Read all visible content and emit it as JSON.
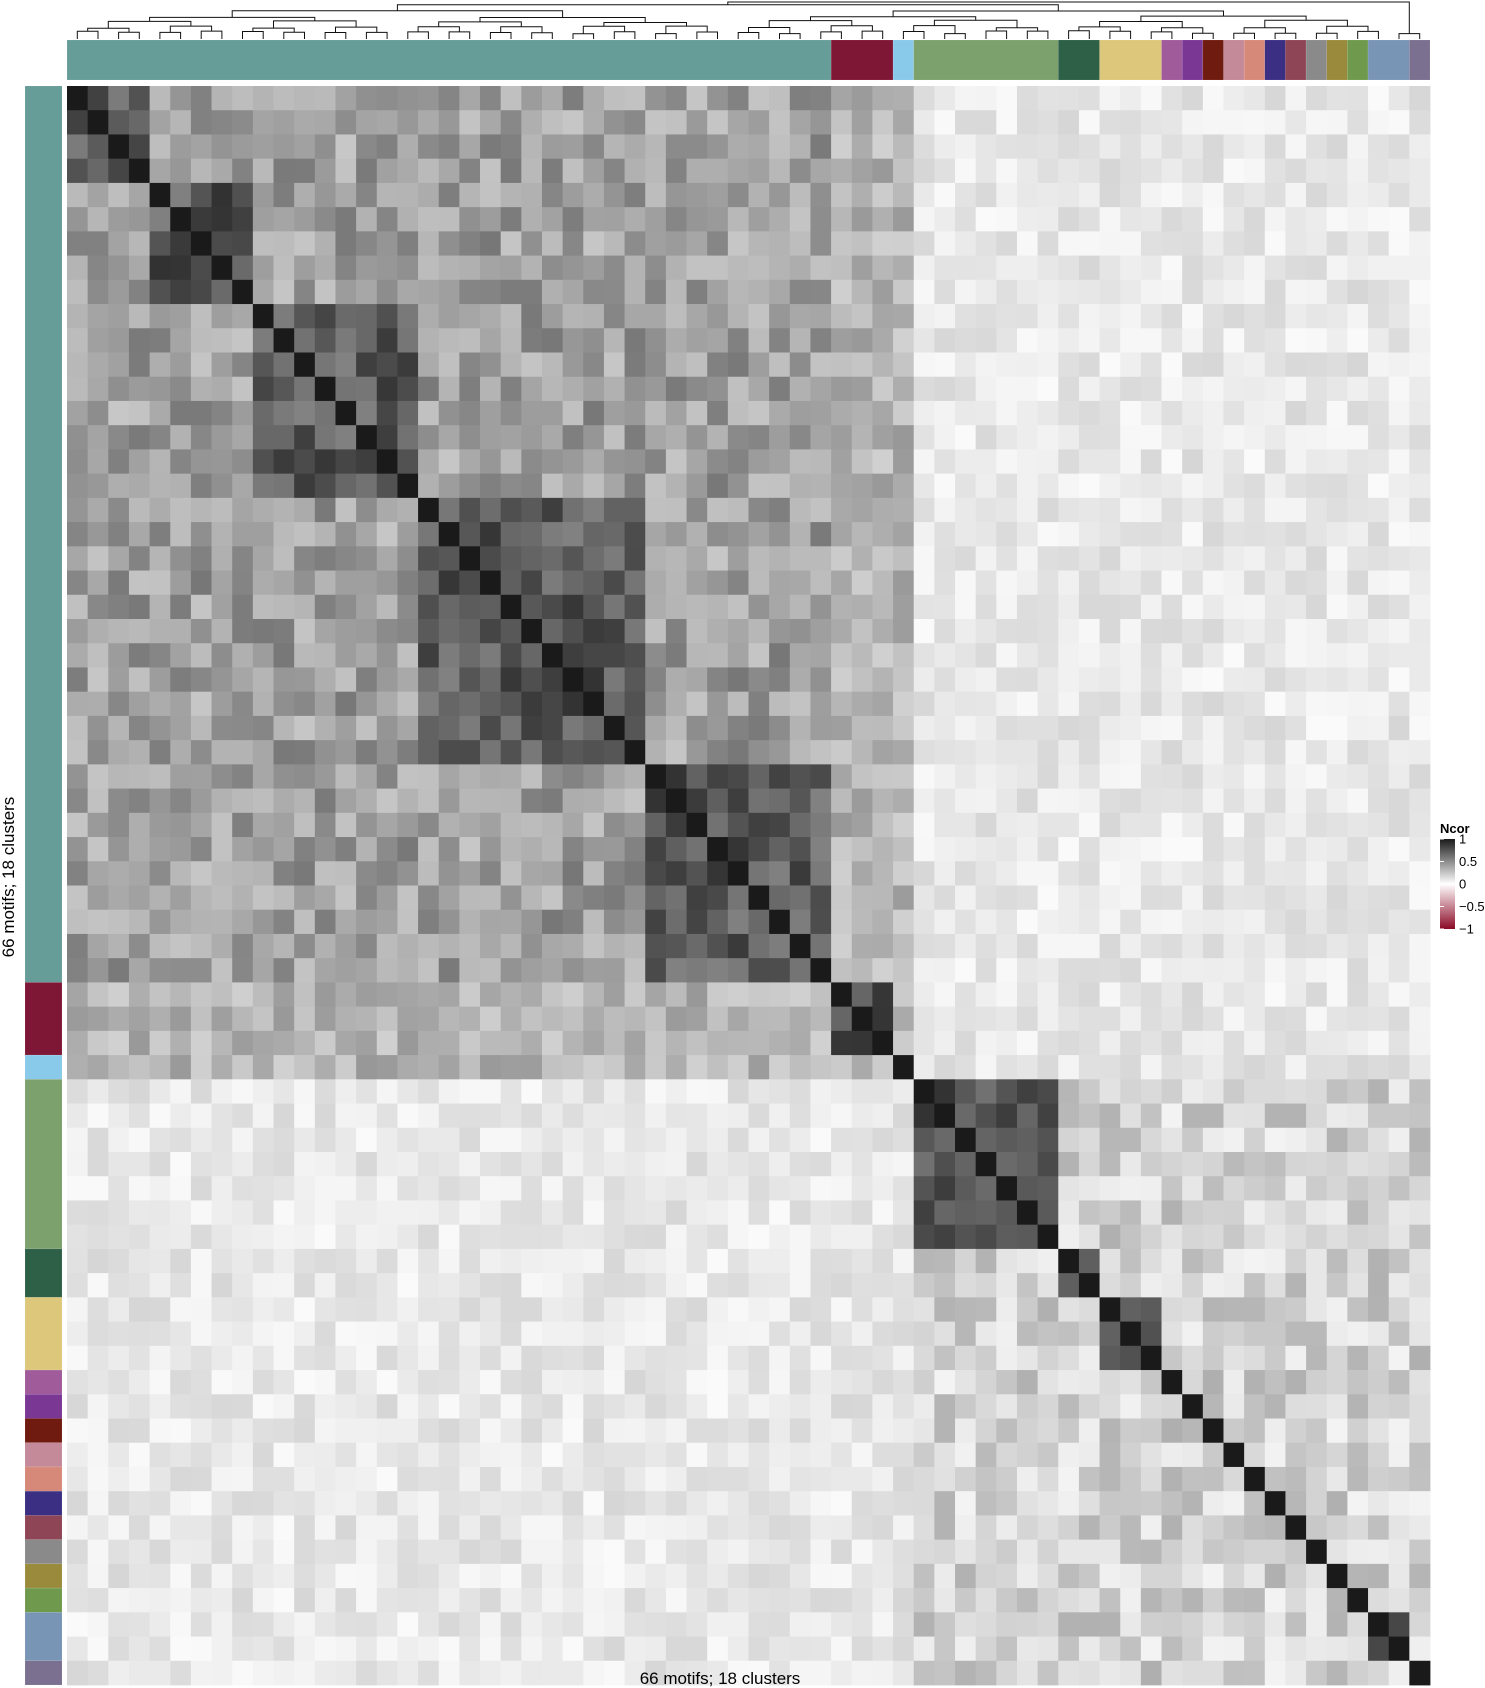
{
  "chart_data": {
    "type": "heatmap",
    "title": "",
    "xlabel": "66 motifs; 18 clusters",
    "ylabel": "66 motifs; 18 clusters",
    "n_motifs": 66,
    "n_clusters": 18,
    "zlim": [
      -1,
      1
    ],
    "legend": {
      "title": "Ncor",
      "placement": "right",
      "ticks": [
        {
          "value": 1,
          "label": "1"
        },
        {
          "value": 0.5,
          "label": "0.5"
        },
        {
          "value": 0,
          "label": "0"
        },
        {
          "value": -0.5,
          "label": "−0.5"
        },
        {
          "value": -1,
          "label": "−1"
        }
      ],
      "colors": {
        "low": "#8b0a26",
        "mid": "#ffffff",
        "high": "#1a1a1a"
      }
    },
    "dendrogram": "top",
    "clusters": [
      {
        "size": 37,
        "color": "#669d99"
      },
      {
        "size": 3,
        "color": "#7e1736"
      },
      {
        "size": 1,
        "color": "#89c9ea"
      },
      {
        "size": 7,
        "color": "#7ca16d"
      },
      {
        "size": 2,
        "color": "#2e5f47"
      },
      {
        "size": 3,
        "color": "#ddc77a"
      },
      {
        "size": 1,
        "color": "#a05b9b"
      },
      {
        "size": 1,
        "color": "#7a3794"
      },
      {
        "size": 1,
        "color": "#701b10"
      },
      {
        "size": 1,
        "color": "#c48a99"
      },
      {
        "size": 1,
        "color": "#d78979"
      },
      {
        "size": 1,
        "color": "#3a2f82"
      },
      {
        "size": 1,
        "color": "#8e4555"
      },
      {
        "size": 1,
        "color": "#8a8a8a"
      },
      {
        "size": 1,
        "color": "#9a8b3c"
      },
      {
        "size": 1,
        "color": "#6f9a4e"
      },
      {
        "size": 2,
        "color": "#7895b5"
      },
      {
        "size": 1,
        "color": "#7b7090"
      }
    ]
  }
}
